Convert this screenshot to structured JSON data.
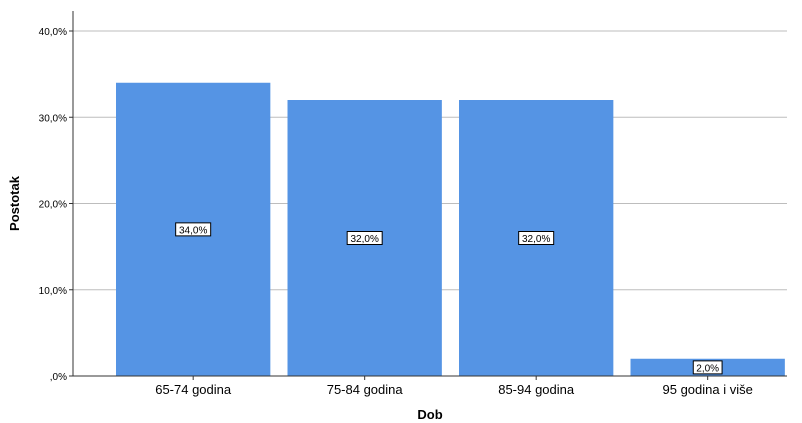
{
  "chart_data": {
    "type": "bar",
    "categories": [
      "65-74 godina",
      "75-84 godina",
      "85-94 godina",
      "95 godina i više"
    ],
    "values": [
      34.0,
      32.0,
      32.0,
      2.0
    ],
    "data_labels": [
      "34,0%",
      "32,0%",
      "32,0%",
      "2,0%"
    ],
    "xlabel": "Dob",
    "ylabel": "Postotak",
    "ylim": [
      0,
      40
    ],
    "yticks": [
      0,
      10,
      20,
      30,
      40
    ],
    "ytick_labels": [
      ",0%",
      "10,0%",
      "20,0%",
      "30,0%",
      "40,0%"
    ],
    "grid": true,
    "legend": "none"
  },
  "colors": {
    "bar": "#5594e4",
    "grid": "#bdbdbd",
    "axis": "#333333",
    "background": "#ffffff"
  }
}
